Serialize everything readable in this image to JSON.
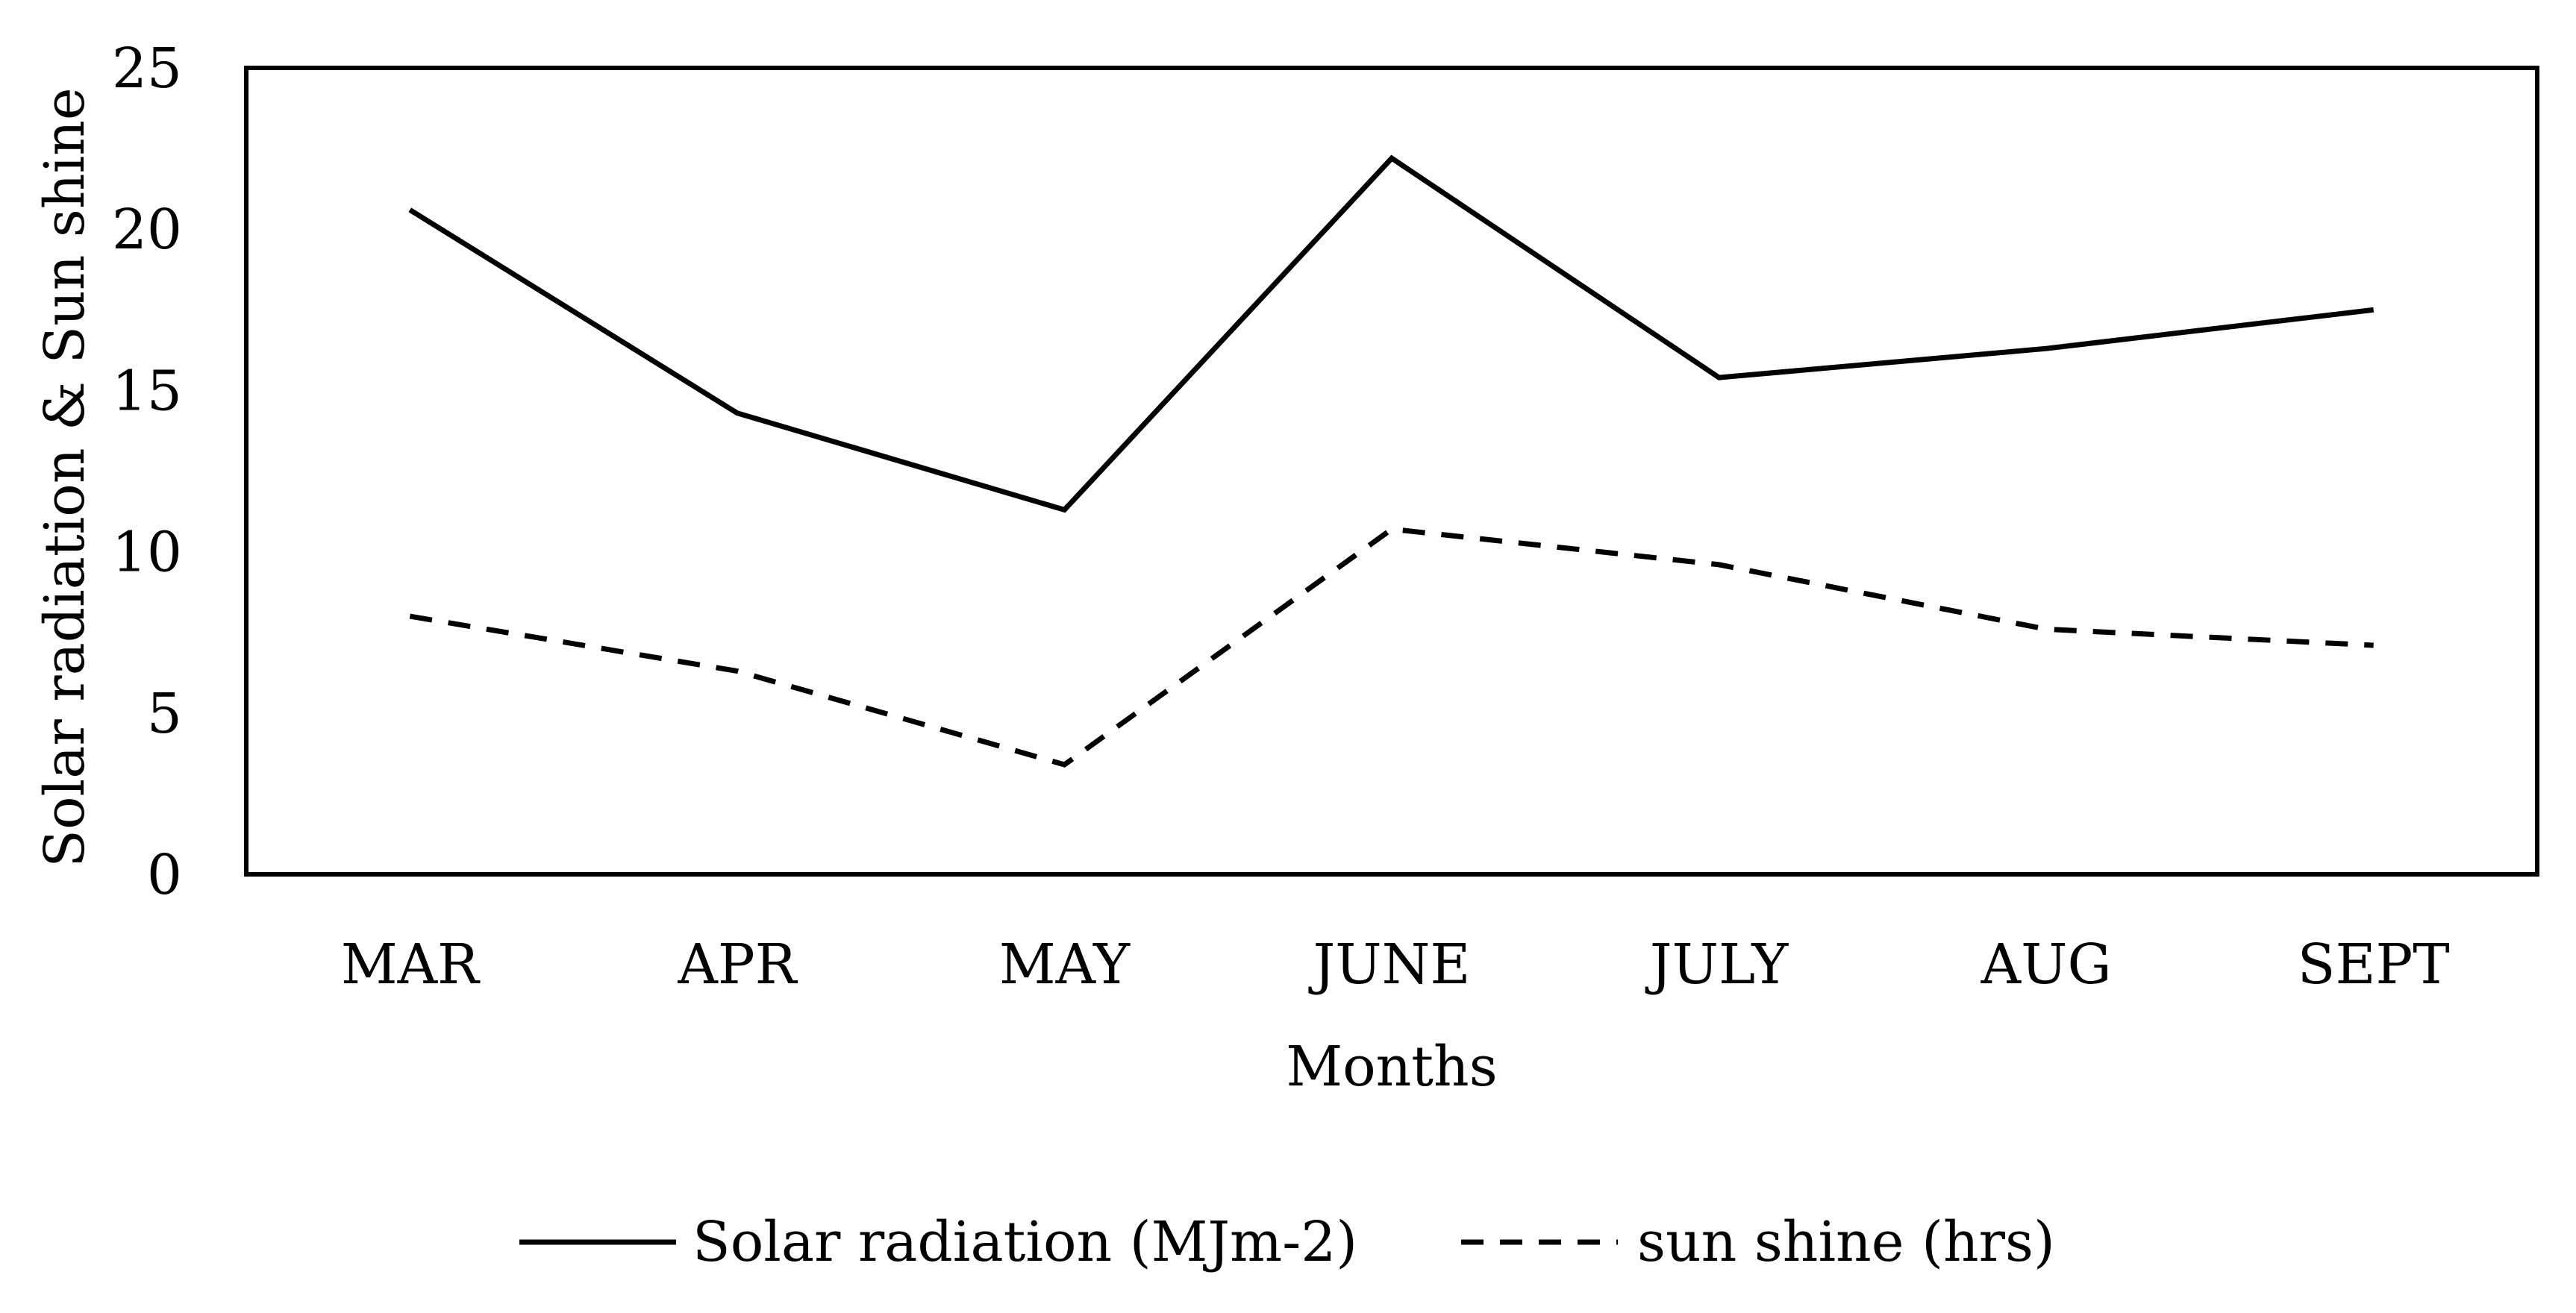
{
  "chart_data": {
    "type": "line",
    "title": "",
    "xlabel": "Months",
    "ylabel": "Solar radiation & Sun shine",
    "categories": [
      "MAR",
      "APR",
      "MAY",
      "JUNE",
      "JULY",
      "AUG",
      "SEPT"
    ],
    "ylim": [
      0,
      25
    ],
    "yticks": [
      "0",
      "5",
      "10",
      "15",
      "20",
      "25"
    ],
    "grid": false,
    "legend_position": "bottom-center",
    "series": [
      {
        "name": "Solar radiation (MJm-2)",
        "style": "solid",
        "color": "#000000",
        "values": [
          20.6,
          14.3,
          11.3,
          22.2,
          15.4,
          16.3,
          17.5
        ]
      },
      {
        "name": "sun shine (hrs)",
        "style": "dashed",
        "color": "#000000",
        "values": [
          8.0,
          6.3,
          3.4,
          10.7,
          9.6,
          7.6,
          7.1
        ]
      }
    ]
  }
}
